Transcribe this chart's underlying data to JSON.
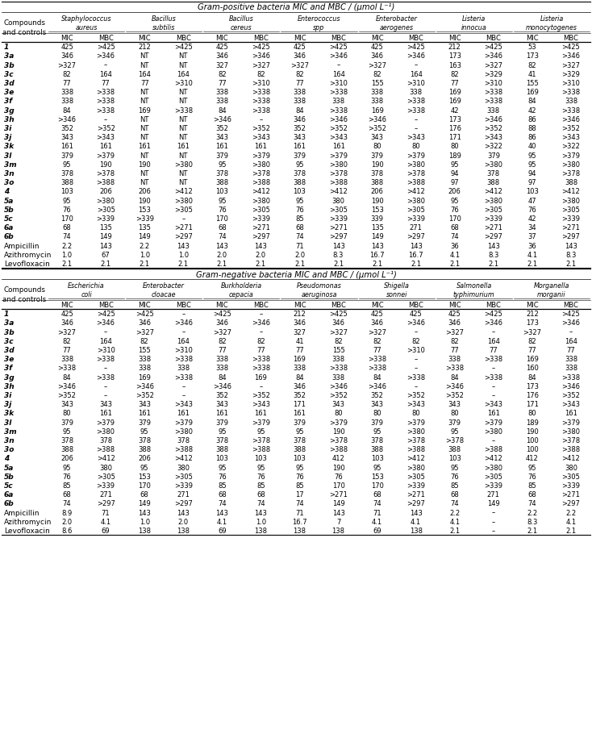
{
  "title_pos": "Gram-positive bacteria MIC and MBC / (μmol L⁻¹)",
  "title_neg": "Gram-negative bacteria MIC and MBC / (μmol L⁻¹)",
  "pos_bacteria": [
    "Staphylococcus\naureus",
    "Bacillus\nsubtilis",
    "Bacillus\ncereus",
    "Enterococcus\nspp",
    "Enterobacter\naerogenes",
    "Listeria\ninnocua",
    "Listeria\nmonocytogenes"
  ],
  "neg_bacteria": [
    "Escherichia\ncoli",
    "Enterobacter\ncloacae",
    "Burkholderia\ncepacia",
    "Pseudomonas\naeruginosa",
    "Shigella\nsonnei",
    "Salmonella\ntyphimurium",
    "Morganella\nmorganii"
  ],
  "compounds": [
    "1",
    "3a",
    "3b",
    "3c",
    "3d",
    "3e",
    "3f",
    "3g",
    "3h",
    "3i",
    "3j",
    "3k",
    "3l",
    "3m",
    "3n",
    "3o",
    "4",
    "5a",
    "5b",
    "5c",
    "6a",
    "6b",
    "Ampicillin",
    "Azithromycin",
    "Levofloxacin"
  ],
  "bold_compounds": [
    "1",
    "3a",
    "3b",
    "3c",
    "3d",
    "3e",
    "3f",
    "3g",
    "3h",
    "3i",
    "3j",
    "3k",
    "3l",
    "3m",
    "3n",
    "3o",
    "4",
    "5a",
    "5b",
    "5c",
    "6a",
    "6b"
  ],
  "pos_data": [
    [
      "425",
      ">425",
      "212",
      ">425",
      "425",
      ">425",
      "425",
      ">425",
      "425",
      ">425",
      "212",
      ">425",
      "53",
      ">425"
    ],
    [
      "346",
      ">346",
      "NT",
      "NT",
      "346",
      ">346",
      "346",
      ">346",
      "346",
      ">346",
      "173",
      ">346",
      "173",
      ">346"
    ],
    [
      ">327",
      "–",
      "NT",
      "NT",
      "327",
      ">327",
      ">327",
      "–",
      ">327",
      "–",
      "163",
      ">327",
      "82",
      ">327"
    ],
    [
      "82",
      "164",
      "164",
      "164",
      "82",
      "82",
      "82",
      "164",
      "82",
      "164",
      "82",
      ">329",
      "41",
      ">329"
    ],
    [
      "77",
      "77",
      "77",
      ">310",
      "77",
      ">310",
      "77",
      ">310",
      "155",
      ">310",
      "77",
      ">310",
      "155",
      ">310"
    ],
    [
      "338",
      ">338",
      "NT",
      "NT",
      "338",
      ">338",
      "338",
      ">338",
      "338",
      "338",
      "169",
      ">338",
      "169",
      ">338"
    ],
    [
      "338",
      ">338",
      "NT",
      "NT",
      "338",
      ">338",
      "338",
      "338",
      "338",
      ">338",
      "169",
      ">338",
      "84",
      "338"
    ],
    [
      "84",
      ">338",
      "169",
      ">338",
      "84",
      ">338",
      "84",
      ">338",
      "169",
      ">338",
      "42",
      "338",
      "42",
      ">338"
    ],
    [
      ">346",
      "–",
      "NT",
      "NT",
      ">346",
      "–",
      "346",
      ">346",
      ">346",
      "–",
      "173",
      ">346",
      "86",
      ">346"
    ],
    [
      "352",
      ">352",
      "NT",
      "NT",
      "352",
      ">352",
      "352",
      ">352",
      ">352",
      "–",
      "176",
      ">352",
      "88",
      ">352"
    ],
    [
      "343",
      ">343",
      "NT",
      "NT",
      "343",
      ">343",
      "343",
      ">343",
      "343",
      ">343",
      "171",
      ">343",
      "86",
      ">343"
    ],
    [
      "161",
      "161",
      "161",
      "161",
      "161",
      "161",
      "161",
      "161",
      "80",
      "80",
      "80",
      ">322",
      "40",
      ">322"
    ],
    [
      "379",
      ">379",
      "NT",
      "NT",
      "379",
      ">379",
      "379",
      ">379",
      "379",
      ">379",
      "189",
      "379",
      "95",
      ">379"
    ],
    [
      "95",
      "190",
      "190",
      ">380",
      "95",
      ">380",
      "95",
      ">380",
      "190",
      ">380",
      "95",
      ">380",
      "95",
      ">380"
    ],
    [
      "378",
      ">378",
      "NT",
      "NT",
      "378",
      ">378",
      "378",
      ">378",
      "378",
      ">378",
      "94",
      "378",
      "94",
      ">378"
    ],
    [
      "388",
      ">388",
      "NT",
      "NT",
      "388",
      ">388",
      "388",
      ">388",
      "388",
      ">388",
      "97",
      "388",
      "97",
      "388"
    ],
    [
      "103",
      "206",
      "206",
      ">412",
      "103",
      ">412",
      "103",
      ">412",
      "206",
      ">412",
      "206",
      ">412",
      "103",
      ">412"
    ],
    [
      "95",
      ">380",
      "190",
      ">380",
      "95",
      ">380",
      "95",
      "380",
      "190",
      ">380",
      "95",
      ">380",
      "47",
      ">380"
    ],
    [
      "76",
      ">305",
      "153",
      ">305",
      "76",
      ">305",
      "76",
      ">305",
      "153",
      ">305",
      "76",
      ">305",
      "76",
      ">305"
    ],
    [
      "170",
      ">339",
      ">339",
      "–",
      "170",
      ">339",
      "85",
      ">339",
      "339",
      ">339",
      "170",
      ">339",
      "42",
      ">339"
    ],
    [
      "68",
      "135",
      "135",
      ">271",
      "68",
      ">271",
      "68",
      ">271",
      "135",
      "271",
      "68",
      ">271",
      "34",
      ">271"
    ],
    [
      "74",
      "149",
      "149",
      ">297",
      "74",
      ">297",
      "74",
      ">297",
      "149",
      ">297",
      "74",
      ">297",
      "37",
      ">297"
    ],
    [
      "2.2",
      "143",
      "2.2",
      "143",
      "143",
      "143",
      "71",
      "143",
      "143",
      "143",
      "36",
      "143",
      "36",
      "143"
    ],
    [
      "1.0",
      "67",
      "1.0",
      "1.0",
      "2.0",
      "2.0",
      "2.0",
      "8.3",
      "16.7",
      "16.7",
      "4.1",
      "8.3",
      "4.1",
      "8.3"
    ],
    [
      "2.1",
      "2.1",
      "2.1",
      "2.1",
      "2.1",
      "2.1",
      "2.1",
      "2.1",
      "2.1",
      "2.1",
      "2.1",
      "2.1",
      "2.1",
      "2.1"
    ]
  ],
  "neg_data": [
    [
      "425",
      ">425",
      ">425",
      "–",
      ">425",
      "–",
      "212",
      ">425",
      "425",
      "425",
      "425",
      ">425",
      "212",
      ">425"
    ],
    [
      "346",
      ">346",
      "346",
      ">346",
      "346",
      ">346",
      "346",
      "346",
      "346",
      ">346",
      "346",
      ">346",
      "173",
      ">346"
    ],
    [
      ">327",
      "–",
      ">327",
      "–",
      ">327",
      "–",
      "327",
      ">327",
      ">327",
      "–",
      ">327",
      "–",
      ">327",
      "–"
    ],
    [
      "82",
      "164",
      "82",
      "164",
      "82",
      "82",
      "41",
      "82",
      "82",
      "82",
      "82",
      "164",
      "82",
      "164"
    ],
    [
      "77",
      ">310",
      "155",
      ">310",
      "77",
      "77",
      "77",
      "155",
      "77",
      ">310",
      "77",
      "77",
      "77",
      "77"
    ],
    [
      "338",
      ">338",
      "338",
      ">338",
      "338",
      ">338",
      "169",
      "338",
      ">338",
      "–",
      "338",
      ">338",
      "169",
      "338"
    ],
    [
      ">338",
      "–",
      "338",
      "338",
      "338",
      ">338",
      "338",
      ">338",
      ">338",
      "–",
      ">338",
      "–",
      "160",
      "338"
    ],
    [
      "84",
      ">338",
      "169",
      ">338",
      "84",
      "169",
      "84",
      "338",
      "84",
      ">338",
      "84",
      ">338",
      "84",
      ">338"
    ],
    [
      ">346",
      "–",
      ">346",
      "–",
      ">346",
      "–",
      "346",
      ">346",
      ">346",
      "–",
      ">346",
      "–",
      "173",
      ">346"
    ],
    [
      ">352",
      "–",
      ">352",
      "–",
      "352",
      ">352",
      "352",
      ">352",
      "352",
      ">352",
      ">352",
      "–",
      "176",
      ">352"
    ],
    [
      "343",
      "343",
      "343",
      ">343",
      "343",
      ">343",
      "171",
      "343",
      "343",
      ">343",
      "343",
      ">343",
      "171",
      ">343"
    ],
    [
      "80",
      "161",
      "161",
      "161",
      "161",
      "161",
      "161",
      "80",
      "80",
      "80",
      "80",
      "161",
      "80",
      "161"
    ],
    [
      "379",
      ">379",
      "379",
      ">379",
      "379",
      ">379",
      "379",
      ">379",
      "379",
      ">379",
      "379",
      ">379",
      "189",
      ">379"
    ],
    [
      "95",
      ">380",
      "95",
      ">380",
      "95",
      "95",
      "95",
      "190",
      "95",
      ">380",
      "95",
      ">380",
      "190",
      ">380"
    ],
    [
      "378",
      "378",
      "378",
      "378",
      "378",
      ">378",
      "378",
      ">378",
      "378",
      ">378",
      ">378",
      "–",
      "100",
      ">378"
    ],
    [
      "388",
      ">388",
      "388",
      ">388",
      "388",
      ">388",
      "388",
      ">388",
      "388",
      ">388",
      "388",
      ">388",
      "100",
      ">388"
    ],
    [
      "206",
      ">412",
      "206",
      ">412",
      "103",
      "103",
      "103",
      "412",
      "103",
      ">412",
      "103",
      ">412",
      "412",
      ">412"
    ],
    [
      "95",
      "380",
      "95",
      "380",
      "95",
      "95",
      "95",
      "190",
      "95",
      ">380",
      "95",
      ">380",
      "95",
      "380"
    ],
    [
      "76",
      ">305",
      "153",
      ">305",
      "76",
      "76",
      "76",
      "76",
      "153",
      ">305",
      "76",
      ">305",
      "76",
      ">305"
    ],
    [
      "85",
      ">339",
      "170",
      ">339",
      "85",
      "85",
      "85",
      "170",
      "170",
      ">339",
      "85",
      ">339",
      "85",
      ">339"
    ],
    [
      "68",
      "271",
      "68",
      "271",
      "68",
      "68",
      "17",
      ">271",
      "68",
      ">271",
      "68",
      "271",
      "68",
      ">271"
    ],
    [
      "74",
      ">297",
      "149",
      ">297",
      "74",
      "74",
      "74",
      "149",
      "74",
      ">297",
      "74",
      "149",
      "74",
      ">297"
    ],
    [
      "8.9",
      "71",
      "143",
      "143",
      "143",
      "143",
      "71",
      "143",
      "71",
      "143",
      "2.2",
      "–",
      "2.2",
      "2.2"
    ],
    [
      "2.0",
      "4.1",
      "1.0",
      "2.0",
      "4.1",
      "1.0",
      "16.7",
      "7",
      "4.1",
      "4.1",
      "4.1",
      "–",
      "8.3",
      "4.1"
    ],
    [
      "8.6",
      "69",
      "138",
      "138",
      "69",
      "138",
      "138",
      "138",
      "69",
      "138",
      "2.1",
      "–",
      "2.1",
      "2.1"
    ]
  ]
}
